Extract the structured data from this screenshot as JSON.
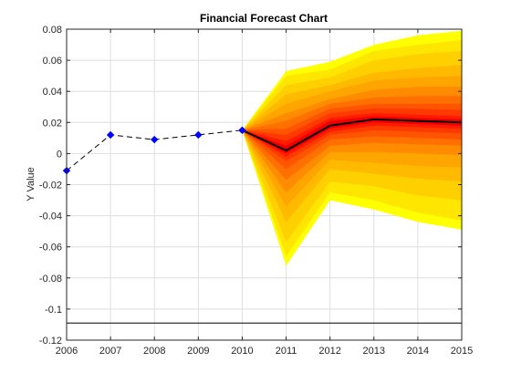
{
  "chart_data": {
    "type": "line",
    "title": "Financial Forecast Chart",
    "xlabel": "",
    "ylabel": "Y Value",
    "xlim": [
      2006,
      2015
    ],
    "ylim": [
      -0.12,
      0.08
    ],
    "x_ticks": [
      "2006",
      "2007",
      "2008",
      "2009",
      "2010",
      "2011",
      "2012",
      "2013",
      "2014",
      "2015"
    ],
    "y_ticks": [
      "0.08",
      "0.06",
      "0.04",
      "0.02",
      "0",
      "-0.02",
      "-0.04",
      "-0.06",
      "-0.08",
      "-0.1",
      "-0.12"
    ],
    "grid": true,
    "legend": "none",
    "reference_line_y": -0.109,
    "historical": {
      "x": [
        2006,
        2007,
        2008,
        2009,
        2010
      ],
      "y": [
        -0.011,
        0.012,
        0.009,
        0.012,
        0.015
      ],
      "line_style": "dashed",
      "line_color": "#000000",
      "marker": "diamond",
      "marker_color": "#0000ff"
    },
    "forecast": {
      "x": [
        2010,
        2011,
        2012,
        2013,
        2014,
        2015
      ],
      "median": [
        0.015,
        0.002,
        0.018,
        0.022,
        0.021,
        0.02
      ],
      "median_color": "#000000",
      "fan_bands": [
        {
          "upper": [
            0.015,
            0.053,
            0.059,
            0.07,
            0.076,
            0.079
          ],
          "lower": [
            0.015,
            -0.072,
            -0.03,
            -0.036,
            -0.044,
            -0.049
          ],
          "color": "#ffff00"
        },
        {
          "upper": [
            0.015,
            0.05,
            0.054,
            0.066,
            0.07,
            0.073
          ],
          "lower": [
            0.015,
            -0.066,
            -0.025,
            -0.03,
            -0.038,
            -0.043
          ],
          "color": "#ffe600"
        },
        {
          "upper": [
            0.015,
            0.044,
            0.049,
            0.06,
            0.064,
            0.066
          ],
          "lower": [
            0.015,
            -0.057,
            -0.018,
            -0.021,
            -0.027,
            -0.03
          ],
          "color": "#ffd000"
        },
        {
          "upper": [
            0.015,
            0.038,
            0.044,
            0.052,
            0.055,
            0.057
          ],
          "lower": [
            0.015,
            -0.044,
            -0.01,
            -0.013,
            -0.016,
            -0.018
          ],
          "color": "#ffba00"
        },
        {
          "upper": [
            0.015,
            0.032,
            0.04,
            0.047,
            0.049,
            0.05
          ],
          "lower": [
            0.015,
            -0.034,
            -0.004,
            -0.006,
            -0.008,
            -0.009
          ],
          "color": "#ffa500"
        },
        {
          "upper": [
            0.015,
            0.026,
            0.035,
            0.041,
            0.043,
            0.043
          ],
          "lower": [
            0.015,
            -0.025,
            0.001,
            0.001,
            0.0,
            -0.001
          ],
          "color": "#ff8c00"
        },
        {
          "upper": [
            0.015,
            0.021,
            0.032,
            0.036,
            0.037,
            0.037
          ],
          "lower": [
            0.015,
            -0.017,
            0.005,
            0.007,
            0.006,
            0.005
          ],
          "color": "#ff7000"
        },
        {
          "upper": [
            0.015,
            0.016,
            0.029,
            0.032,
            0.032,
            0.032
          ],
          "lower": [
            0.015,
            -0.01,
            0.009,
            0.011,
            0.01,
            0.009
          ],
          "color": "#ff5500"
        },
        {
          "upper": [
            0.015,
            0.012,
            0.026,
            0.029,
            0.029,
            0.028
          ],
          "lower": [
            0.015,
            -0.005,
            0.012,
            0.015,
            0.014,
            0.013
          ],
          "color": "#ff3a00"
        },
        {
          "upper": [
            0.015,
            0.008,
            0.023,
            0.026,
            0.025,
            0.024
          ],
          "lower": [
            0.015,
            -0.002,
            0.014,
            0.018,
            0.017,
            0.016
          ],
          "color": "#ff1a00"
        },
        {
          "upper": [
            0.015,
            0.005,
            0.021,
            0.024,
            0.023,
            0.022
          ],
          "lower": [
            0.015,
            0.0,
            0.016,
            0.02,
            0.019,
            0.018
          ],
          "color": "#f00000"
        }
      ]
    }
  }
}
